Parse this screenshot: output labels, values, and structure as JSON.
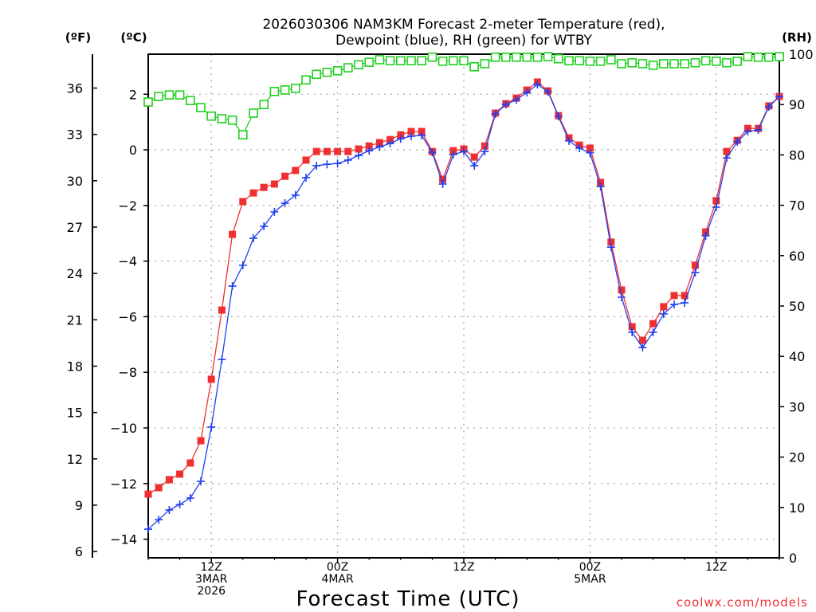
{
  "chart_data": {
    "type": "line",
    "title_line1": "2026030306 NAM3KM Forecast 2-meter Temperature (red),",
    "title_line2": "Dewpoint (blue), RH (green) for WTBY",
    "xlabel": "Forecast Time (UTC)",
    "credit": "coolwx.com/models",
    "unit_labels": {
      "fahrenheit": "(ºF)",
      "celsius": "(ºC)",
      "rh": "(RH)"
    },
    "x_unit": "forecast hour from 06Z 3MAR 2026",
    "xlim": [
      0,
      60
    ],
    "x_ticks": [
      {
        "hour": 6,
        "lines": [
          "12Z",
          "3MAR",
          "2026"
        ]
      },
      {
        "hour": 18,
        "lines": [
          "00Z",
          "4MAR"
        ]
      },
      {
        "hour": 30,
        "lines": [
          "12Z"
        ]
      },
      {
        "hour": 42,
        "lines": [
          "00Z",
          "5MAR"
        ]
      },
      {
        "hour": 54,
        "lines": [
          "12Z"
        ]
      }
    ],
    "celsius_ticks": [
      "2",
      "0",
      "−2",
      "−4",
      "−6",
      "−8",
      "−10",
      "−12",
      "−14"
    ],
    "fahrenheit_ticks": [
      "36",
      "33",
      "30",
      "27",
      "24",
      "21",
      "18",
      "15",
      "12",
      "9",
      "6"
    ],
    "rh_ticks": [
      "100",
      "90",
      "80",
      "70",
      "60",
      "50",
      "40",
      "30",
      "20",
      "10",
      "0"
    ],
    "ylim_celsius": [
      -14.67,
      3.44
    ],
    "ylim_rh": [
      0,
      100
    ],
    "grid": true,
    "series": [
      {
        "name": "Temperature",
        "color": "#f03030",
        "axis": "celsius",
        "marker": "filled-square",
        "values": [
          -12.38,
          -12.15,
          -11.86,
          -11.66,
          -11.26,
          -10.46,
          -8.25,
          -5.76,
          -3.04,
          -1.86,
          -1.55,
          -1.35,
          -1.23,
          -0.95,
          -0.74,
          -0.37,
          -0.06,
          -0.06,
          -0.06,
          -0.06,
          0.03,
          0.14,
          0.26,
          0.37,
          0.54,
          0.66,
          0.66,
          -0.06,
          -1.06,
          -0.03,
          0.03,
          -0.26,
          0.14,
          1.32,
          1.66,
          1.86,
          2.15,
          2.44,
          2.12,
          1.23,
          0.43,
          0.17,
          0.06,
          -1.17,
          -3.32,
          -5.04,
          -6.36,
          -6.85,
          -6.25,
          -5.64,
          -5.24,
          -5.24,
          -4.15,
          -2.95,
          -1.83,
          -0.06,
          0.34,
          0.77,
          0.77,
          1.58,
          1.92
        ]
      },
      {
        "name": "Dewpoint",
        "color": "#2040f0",
        "axis": "celsius",
        "marker": "plus",
        "values": [
          -13.64,
          -13.3,
          -12.95,
          -12.75,
          -12.52,
          -11.92,
          -9.97,
          -7.54,
          -4.9,
          -4.15,
          -3.18,
          -2.75,
          -2.23,
          -1.92,
          -1.63,
          -1.0,
          -0.57,
          -0.52,
          -0.49,
          -0.37,
          -0.2,
          -0.03,
          0.11,
          0.23,
          0.4,
          0.49,
          0.52,
          -0.09,
          -1.23,
          -0.17,
          -0.06,
          -0.57,
          -0.06,
          1.29,
          1.63,
          1.8,
          2.06,
          2.35,
          2.09,
          1.2,
          0.32,
          0.06,
          -0.11,
          -1.32,
          -3.5,
          -5.3,
          -6.56,
          -7.11,
          -6.56,
          -5.9,
          -5.56,
          -5.5,
          -4.41,
          -3.09,
          -2.06,
          -0.29,
          0.29,
          0.66,
          0.72,
          1.55,
          1.92
        ]
      },
      {
        "name": "RH",
        "color": "#20d020",
        "axis": "rh",
        "marker": "open-square",
        "values": [
          90.5,
          91.6,
          91.9,
          91.9,
          90.8,
          89.4,
          87.7,
          87.2,
          86.9,
          84.0,
          88.3,
          90.0,
          92.6,
          92.9,
          93.2,
          94.9,
          96.0,
          96.4,
          96.7,
          97.3,
          97.9,
          98.4,
          98.9,
          98.7,
          98.7,
          98.7,
          98.7,
          99.4,
          98.6,
          98.7,
          98.7,
          97.5,
          98.1,
          99.4,
          99.4,
          99.4,
          99.4,
          99.4,
          99.5,
          99.1,
          98.7,
          98.7,
          98.6,
          98.6,
          98.9,
          98.1,
          98.3,
          98.1,
          97.8,
          98.1,
          98.1,
          98.1,
          98.3,
          98.7,
          98.6,
          98.3,
          98.6,
          99.5,
          99.4,
          99.4,
          99.5
        ]
      }
    ]
  }
}
